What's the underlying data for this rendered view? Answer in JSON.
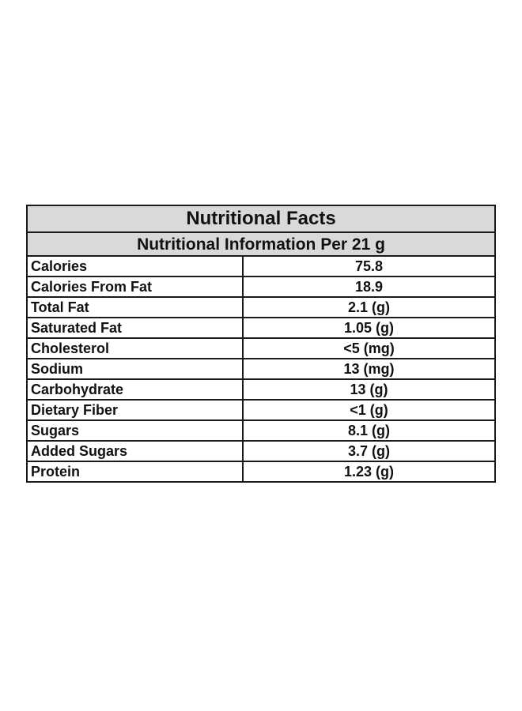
{
  "title": "Nutritional Facts",
  "subtitle": "Nutritional Information Per 21 g",
  "rows": [
    {
      "label": "Calories",
      "value": "75.8"
    },
    {
      "label": "Calories From Fat",
      "value": "18.9"
    },
    {
      "label": "Total Fat",
      "value": "2.1 (g)"
    },
    {
      "label": "Saturated Fat",
      "value": "1.05 (g)"
    },
    {
      "label": "Cholesterol",
      "value": "<5 (mg)"
    },
    {
      "label": "Sodium",
      "value": "13 (mg)"
    },
    {
      "label": "Carbohydrate",
      "value": "13 (g)"
    },
    {
      "label": "Dietary Fiber",
      "value": "<1 (g)"
    },
    {
      "label": "Sugars",
      "value": "8.1 (g)"
    },
    {
      "label": "Added Sugars",
      "value": "3.7 (g)"
    },
    {
      "label": "Protein",
      "value": "1.23 (g)"
    }
  ],
  "colors": {
    "header_background": "#d9d9d9",
    "border": "#1a1a1a",
    "text": "#111111"
  }
}
